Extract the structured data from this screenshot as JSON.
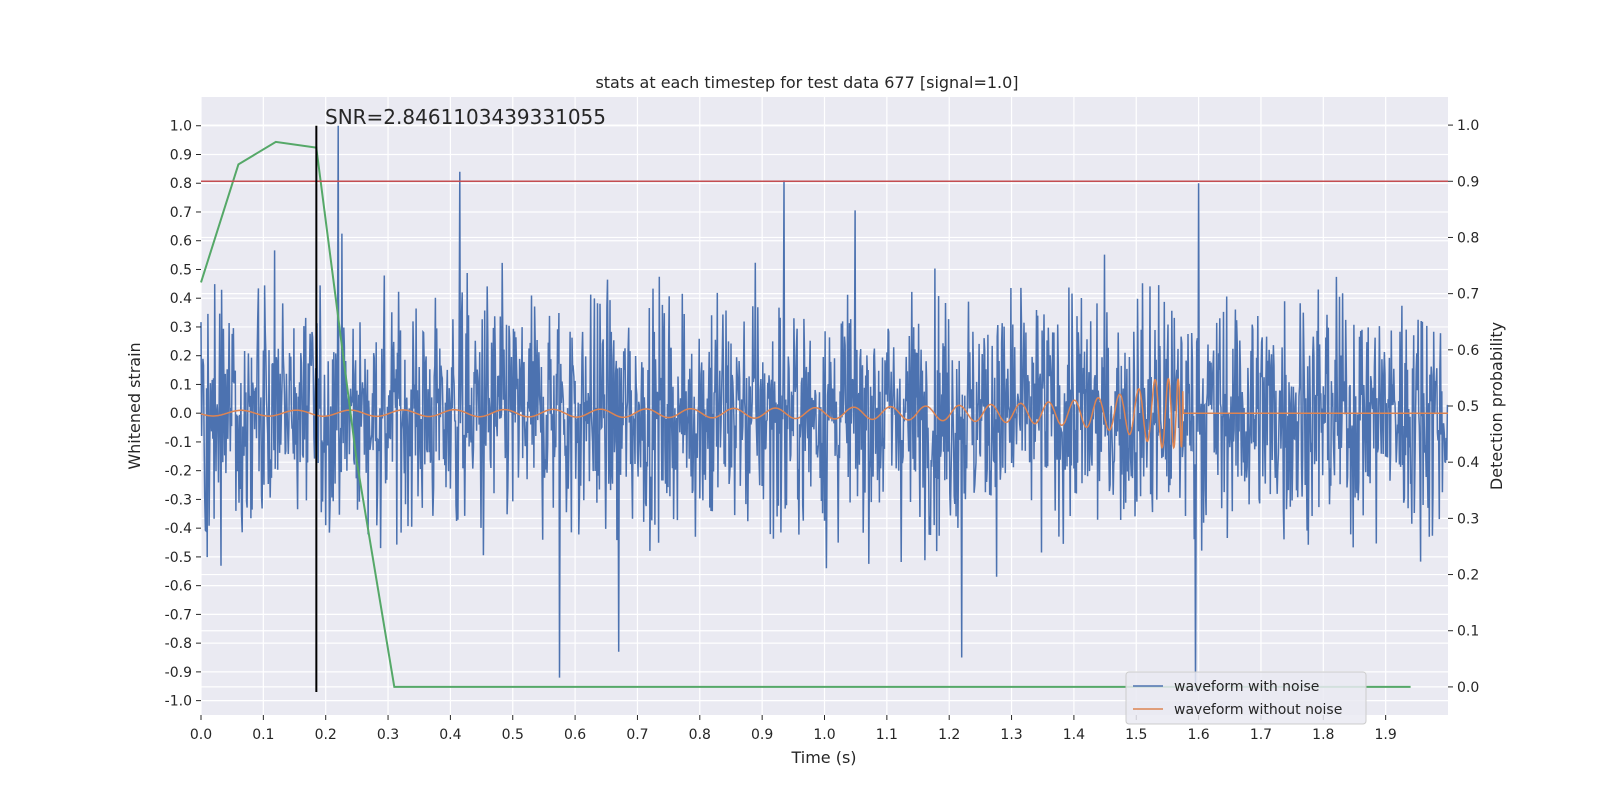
{
  "chart_data": {
    "type": "line",
    "title": "stats at each timestep for test data 677 [signal=1.0]",
    "xlabel": "Time (s)",
    "ylabel_left": "Whitened strain",
    "ylabel_right": "Detection probability",
    "xlim": [
      0.0,
      2.0
    ],
    "ylim_left": [
      -1.05,
      1.1
    ],
    "ylim_right": [
      -0.05,
      1.05
    ],
    "x_ticks": [
      "0.0",
      "0.1",
      "0.2",
      "0.3",
      "0.4",
      "0.5",
      "0.6",
      "0.7",
      "0.8",
      "0.9",
      "1.0",
      "1.1",
      "1.2",
      "1.3",
      "1.4",
      "1.5",
      "1.6",
      "1.7",
      "1.8",
      "1.9"
    ],
    "y_ticks_left": [
      "-1.0",
      "-0.9",
      "-0.8",
      "-0.7",
      "-0.6",
      "-0.5",
      "-0.4",
      "-0.3",
      "-0.2",
      "-0.1",
      "0.0",
      "0.1",
      "0.2",
      "0.3",
      "0.4",
      "0.5",
      "0.6",
      "0.7",
      "0.8",
      "0.9",
      "1.0"
    ],
    "y_ticks_right": [
      "0.0",
      "0.1",
      "0.2",
      "0.3",
      "0.4",
      "0.5",
      "0.6",
      "0.7",
      "0.8",
      "0.9",
      "1.0"
    ],
    "grid": true,
    "legend_position": "lower-right",
    "annotation": {
      "text": "SNR=2.8461103439331055",
      "x": 0.2,
      "y": 1.0
    },
    "vline": {
      "x": 0.185,
      "y_range": [
        -0.97,
        1.0
      ],
      "color": "#000000"
    },
    "hline": {
      "y": 0.9,
      "axis": "right",
      "color": "#c44e52"
    },
    "colors": {
      "noise": "#4c72b0",
      "clean": "#dd8452",
      "probability": "#55a868",
      "threshold": "#c44e52",
      "background": "#eaeaf2",
      "grid": "#ffffff"
    },
    "series": [
      {
        "name": "waveform with noise",
        "axis": "left",
        "description_key": "noise",
        "peaks": {
          "max": 1.0,
          "min": -0.97
        }
      },
      {
        "name": "waveform without noise",
        "axis": "left",
        "chirp_end_time": 1.575,
        "chirp_peak_amplitude": 0.12
      },
      {
        "name": "",
        "axis": "right",
        "x": [
          0.0,
          0.06,
          0.12,
          0.185,
          0.25,
          0.31,
          0.37,
          1.94
        ],
        "y": [
          0.72,
          0.93,
          0.97,
          0.96,
          0.4,
          0.0,
          0.0,
          0.0
        ]
      }
    ]
  }
}
